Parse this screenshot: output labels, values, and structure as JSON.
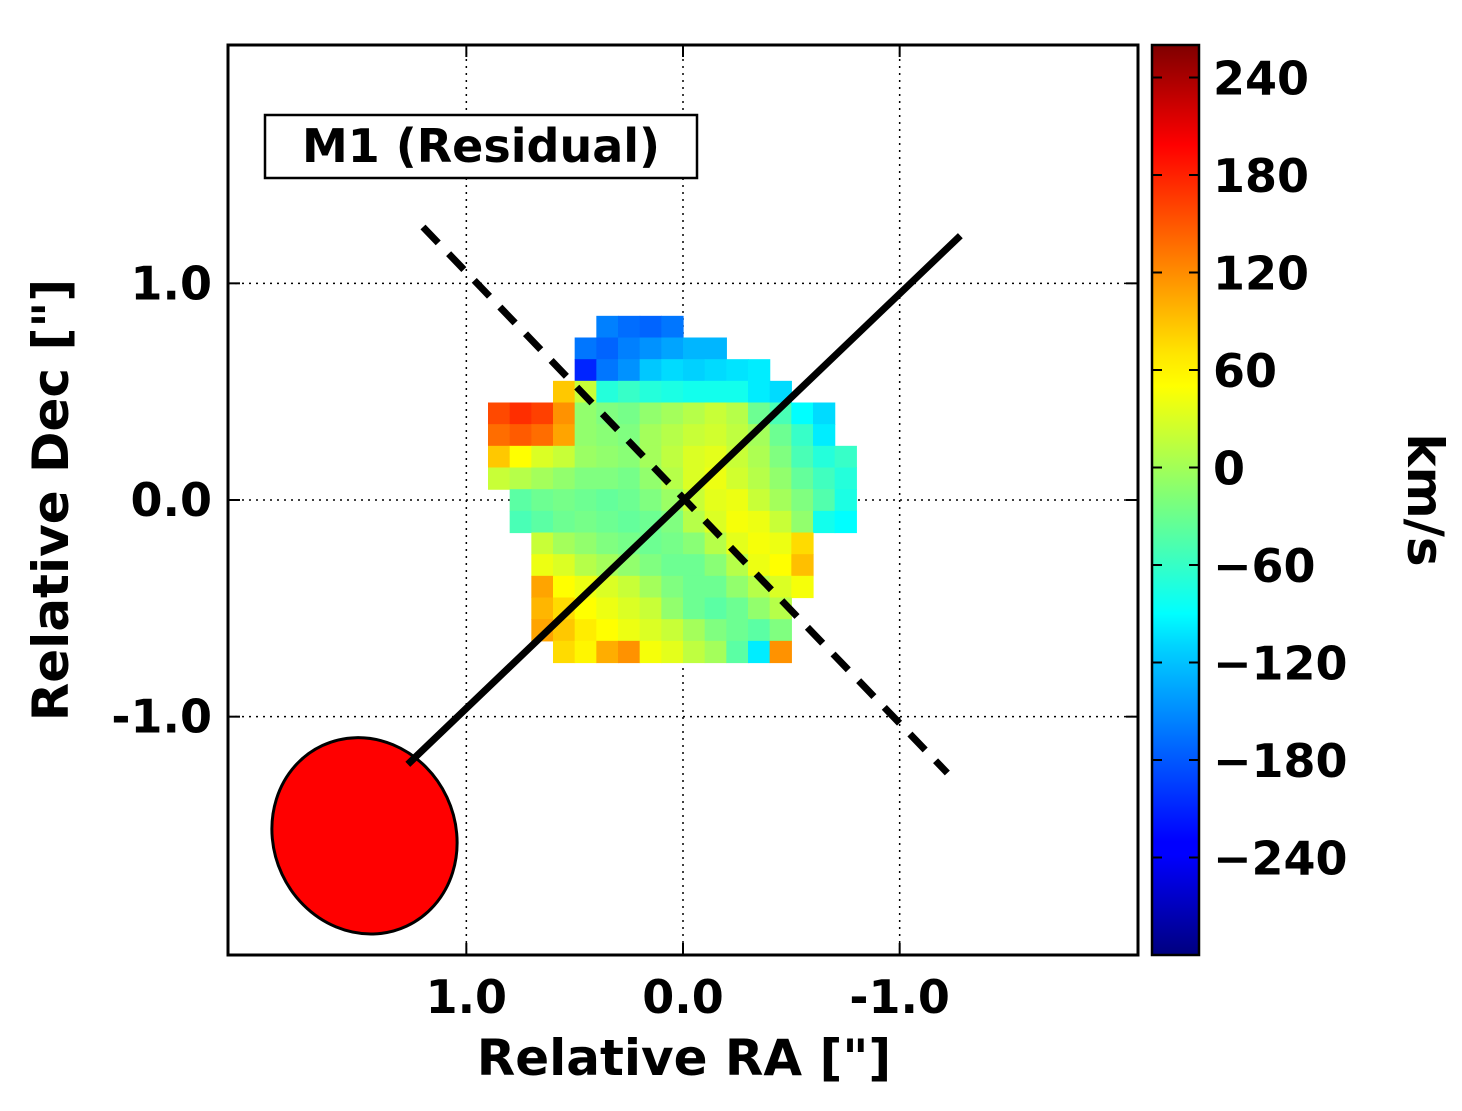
{
  "chart_data": {
    "type": "heatmap",
    "label_box": "M1 (Residual)",
    "xlabel": "Relative RA [\"]",
    "ylabel": "Relative Dec [\"]",
    "xlim": [
      2.1,
      -2.1
    ],
    "ylim": [
      -2.1,
      2.1
    ],
    "x_ticks": [
      {
        "value": 1.0,
        "label": "1.0"
      },
      {
        "value": 0.0,
        "label": "0.0"
      },
      {
        "value": -1.0,
        "label": "-1.0"
      }
    ],
    "y_ticks": [
      {
        "value": 1.0,
        "label": "1.0"
      },
      {
        "value": 0.0,
        "label": "0.0"
      },
      {
        "value": -1.0,
        "label": "-1.0"
      }
    ],
    "grid": true,
    "grid_style": "dotted",
    "pixel_size": 0.1,
    "cells": [
      [
        0.35,
        0.8,
        -160
      ],
      [
        0.25,
        0.8,
        -170
      ],
      [
        0.15,
        0.8,
        -175
      ],
      [
        0.05,
        0.8,
        -165
      ],
      [
        0.45,
        0.7,
        -165
      ],
      [
        0.35,
        0.7,
        -175
      ],
      [
        0.25,
        0.7,
        -160
      ],
      [
        0.15,
        0.7,
        -150
      ],
      [
        0.05,
        0.7,
        -140
      ],
      [
        -0.05,
        0.7,
        -130
      ],
      [
        -0.15,
        0.7,
        -130
      ],
      [
        0.45,
        0.6,
        -210
      ],
      [
        0.35,
        0.6,
        -165
      ],
      [
        0.25,
        0.6,
        -150
      ],
      [
        0.15,
        0.6,
        -120
      ],
      [
        0.05,
        0.6,
        -110
      ],
      [
        -0.05,
        0.6,
        -115
      ],
      [
        -0.15,
        0.6,
        -110
      ],
      [
        -0.25,
        0.6,
        -105
      ],
      [
        -0.35,
        0.6,
        -100
      ],
      [
        0.55,
        0.5,
        80
      ],
      [
        0.45,
        0.5,
        20
      ],
      [
        0.35,
        0.5,
        -70
      ],
      [
        0.25,
        0.5,
        -60
      ],
      [
        0.15,
        0.5,
        -70
      ],
      [
        0.05,
        0.5,
        -75
      ],
      [
        -0.05,
        0.5,
        -80
      ],
      [
        -0.15,
        0.5,
        -80
      ],
      [
        -0.25,
        0.5,
        -80
      ],
      [
        -0.35,
        0.5,
        -100
      ],
      [
        -0.45,
        0.5,
        -110
      ],
      [
        0.85,
        0.4,
        150
      ],
      [
        0.75,
        0.4,
        165
      ],
      [
        0.65,
        0.4,
        155
      ],
      [
        0.55,
        0.4,
        110
      ],
      [
        0.45,
        0.4,
        -10
      ],
      [
        0.35,
        0.4,
        -20
      ],
      [
        0.25,
        0.4,
        -25
      ],
      [
        0.15,
        0.4,
        -10
      ],
      [
        0.05,
        0.4,
        0
      ],
      [
        -0.05,
        0.4,
        10
      ],
      [
        -0.15,
        0.4,
        20
      ],
      [
        -0.25,
        0.4,
        10
      ],
      [
        -0.35,
        0.4,
        -30
      ],
      [
        -0.45,
        0.4,
        -50
      ],
      [
        -0.55,
        0.4,
        -90
      ],
      [
        -0.65,
        0.4,
        -110
      ],
      [
        0.85,
        0.3,
        130
      ],
      [
        0.75,
        0.3,
        140
      ],
      [
        0.65,
        0.3,
        130
      ],
      [
        0.55,
        0.3,
        100
      ],
      [
        0.45,
        0.3,
        -10
      ],
      [
        0.35,
        0.3,
        -15
      ],
      [
        0.25,
        0.3,
        -20
      ],
      [
        0.15,
        0.3,
        0
      ],
      [
        0.05,
        0.3,
        10
      ],
      [
        -0.05,
        0.3,
        20
      ],
      [
        -0.15,
        0.3,
        25
      ],
      [
        -0.25,
        0.3,
        15
      ],
      [
        -0.35,
        0.3,
        0
      ],
      [
        -0.45,
        0.3,
        -30
      ],
      [
        -0.55,
        0.3,
        -60
      ],
      [
        -0.65,
        0.3,
        -100
      ],
      [
        0.85,
        0.2,
        80
      ],
      [
        0.75,
        0.2,
        50
      ],
      [
        0.65,
        0.2,
        30
      ],
      [
        0.55,
        0.2,
        20
      ],
      [
        0.45,
        0.2,
        -5
      ],
      [
        0.35,
        0.2,
        -10
      ],
      [
        0.25,
        0.2,
        -15
      ],
      [
        0.15,
        0.2,
        0
      ],
      [
        0.05,
        0.2,
        15
      ],
      [
        -0.05,
        0.2,
        30
      ],
      [
        -0.15,
        0.2,
        35
      ],
      [
        -0.25,
        0.2,
        20
      ],
      [
        -0.35,
        0.2,
        5
      ],
      [
        -0.45,
        0.2,
        -20
      ],
      [
        -0.55,
        0.2,
        -50
      ],
      [
        -0.65,
        0.2,
        -70
      ],
      [
        -0.75,
        0.2,
        -60
      ],
      [
        0.85,
        0.1,
        20
      ],
      [
        0.75,
        0.1,
        10
      ],
      [
        0.65,
        0.1,
        0
      ],
      [
        0.55,
        0.1,
        -10
      ],
      [
        0.45,
        0.1,
        -20
      ],
      [
        0.35,
        0.1,
        -20
      ],
      [
        0.25,
        0.1,
        -25
      ],
      [
        0.15,
        0.1,
        -10
      ],
      [
        0.05,
        0.1,
        10
      ],
      [
        -0.05,
        0.1,
        30
      ],
      [
        -0.15,
        0.1,
        40
      ],
      [
        -0.25,
        0.1,
        25
      ],
      [
        -0.35,
        0.1,
        10
      ],
      [
        -0.45,
        0.1,
        -10
      ],
      [
        -0.55,
        0.1,
        -35
      ],
      [
        -0.65,
        0.1,
        -55
      ],
      [
        -0.75,
        0.1,
        -70
      ],
      [
        0.75,
        0.0,
        -40
      ],
      [
        0.65,
        0.0,
        -30
      ],
      [
        0.55,
        0.0,
        -25
      ],
      [
        0.45,
        0.0,
        -30
      ],
      [
        0.35,
        0.0,
        -35
      ],
      [
        0.25,
        0.0,
        -30
      ],
      [
        0.15,
        0.0,
        -20
      ],
      [
        0.05,
        0.0,
        -5
      ],
      [
        -0.05,
        0.0,
        20
      ],
      [
        -0.15,
        0.0,
        35
      ],
      [
        -0.25,
        0.0,
        40
      ],
      [
        -0.35,
        0.0,
        20
      ],
      [
        -0.45,
        0.0,
        0
      ],
      [
        -0.55,
        0.0,
        -20
      ],
      [
        -0.65,
        0.0,
        -45
      ],
      [
        -0.75,
        0.0,
        -75
      ],
      [
        0.75,
        -0.1,
        -50
      ],
      [
        0.65,
        -0.1,
        -40
      ],
      [
        0.55,
        -0.1,
        -30
      ],
      [
        0.45,
        -0.1,
        -25
      ],
      [
        0.35,
        -0.1,
        -30
      ],
      [
        0.25,
        -0.1,
        -35
      ],
      [
        0.15,
        -0.1,
        -30
      ],
      [
        0.05,
        -0.1,
        -20
      ],
      [
        -0.05,
        -0.1,
        10
      ],
      [
        -0.15,
        -0.1,
        30
      ],
      [
        -0.25,
        -0.1,
        45
      ],
      [
        -0.35,
        -0.1,
        40
      ],
      [
        -0.45,
        -0.1,
        20
      ],
      [
        -0.55,
        -0.1,
        -10
      ],
      [
        -0.65,
        -0.1,
        -80
      ],
      [
        -0.75,
        -0.1,
        -90
      ],
      [
        0.65,
        -0.2,
        20
      ],
      [
        0.55,
        -0.2,
        0
      ],
      [
        0.45,
        -0.2,
        -10
      ],
      [
        0.35,
        -0.2,
        -20
      ],
      [
        0.25,
        -0.2,
        -25
      ],
      [
        0.15,
        -0.2,
        -30
      ],
      [
        0.05,
        -0.2,
        -25
      ],
      [
        -0.05,
        -0.2,
        -15
      ],
      [
        -0.15,
        -0.2,
        10
      ],
      [
        -0.25,
        -0.2,
        35
      ],
      [
        -0.35,
        -0.2,
        45
      ],
      [
        -0.45,
        -0.2,
        40
      ],
      [
        -0.55,
        -0.2,
        70
      ],
      [
        0.65,
        -0.3,
        40
      ],
      [
        0.55,
        -0.3,
        30
      ],
      [
        0.45,
        -0.3,
        10
      ],
      [
        0.35,
        -0.3,
        0
      ],
      [
        0.25,
        -0.3,
        -10
      ],
      [
        0.15,
        -0.3,
        -20
      ],
      [
        0.05,
        -0.3,
        -30
      ],
      [
        -0.05,
        -0.3,
        -30
      ],
      [
        -0.15,
        -0.3,
        -15
      ],
      [
        -0.25,
        -0.3,
        10
      ],
      [
        -0.35,
        -0.3,
        40
      ],
      [
        -0.45,
        -0.3,
        50
      ],
      [
        -0.55,
        -0.3,
        85
      ],
      [
        0.65,
        -0.4,
        100
      ],
      [
        0.55,
        -0.4,
        50
      ],
      [
        0.45,
        -0.4,
        40
      ],
      [
        0.35,
        -0.4,
        30
      ],
      [
        0.25,
        -0.4,
        20
      ],
      [
        0.15,
        -0.4,
        0
      ],
      [
        0.05,
        -0.4,
        -20
      ],
      [
        -0.05,
        -0.4,
        -30
      ],
      [
        -0.15,
        -0.4,
        -30
      ],
      [
        -0.25,
        -0.4,
        -10
      ],
      [
        -0.35,
        -0.4,
        10
      ],
      [
        -0.45,
        -0.4,
        30
      ],
      [
        -0.55,
        -0.4,
        45
      ],
      [
        0.65,
        -0.5,
        90
      ],
      [
        0.55,
        -0.5,
        70
      ],
      [
        0.45,
        -0.5,
        50
      ],
      [
        0.35,
        -0.5,
        40
      ],
      [
        0.25,
        -0.5,
        30
      ],
      [
        0.15,
        -0.5,
        20
      ],
      [
        0.05,
        -0.5,
        -10
      ],
      [
        -0.05,
        -0.5,
        -30
      ],
      [
        -0.15,
        -0.5,
        -40
      ],
      [
        -0.25,
        -0.5,
        -30
      ],
      [
        -0.35,
        -0.5,
        -10
      ],
      [
        -0.45,
        -0.5,
        10
      ],
      [
        0.65,
        -0.6,
        100
      ],
      [
        0.55,
        -0.6,
        80
      ],
      [
        0.45,
        -0.6,
        60
      ],
      [
        0.35,
        -0.6,
        50
      ],
      [
        0.25,
        -0.6,
        40
      ],
      [
        0.15,
        -0.6,
        30
      ],
      [
        0.05,
        -0.6,
        20
      ],
      [
        -0.05,
        -0.6,
        0
      ],
      [
        -0.15,
        -0.6,
        -20
      ],
      [
        -0.25,
        -0.6,
        -30
      ],
      [
        -0.35,
        -0.6,
        -40
      ],
      [
        -0.45,
        -0.6,
        -20
      ],
      [
        0.55,
        -0.7,
        70
      ],
      [
        0.45,
        -0.7,
        55
      ],
      [
        0.35,
        -0.7,
        95
      ],
      [
        0.25,
        -0.7,
        110
      ],
      [
        0.15,
        -0.7,
        45
      ],
      [
        0.05,
        -0.7,
        35
      ],
      [
        -0.05,
        -0.7,
        15
      ],
      [
        -0.15,
        -0.7,
        0
      ],
      [
        -0.25,
        -0.7,
        -40
      ],
      [
        -0.35,
        -0.7,
        -100
      ],
      [
        -0.45,
        -0.7,
        110
      ]
    ],
    "lines": [
      {
        "name": "solid",
        "style": "solid",
        "points": [
          [
            1.27,
            -1.22
          ],
          [
            -1.28,
            1.22
          ]
        ]
      },
      {
        "name": "dashed",
        "style": "dashed",
        "points": [
          [
            1.2,
            1.26
          ],
          [
            -1.22,
            -1.26
          ]
        ]
      }
    ],
    "beam": {
      "x": 1.47,
      "y": -1.55,
      "rx": 0.42,
      "ry": 0.46,
      "angle_deg": -25,
      "color": "#ff0000"
    },
    "colorbar": {
      "colormap": "jet",
      "vmin": -300,
      "vmax": 260,
      "ticks": [
        240,
        180,
        120,
        60,
        0,
        -60,
        -120,
        -180,
        -240
      ],
      "tick_labels": [
        "240",
        "180",
        "120",
        "60",
        "0",
        "−60",
        "−120",
        "−180",
        "−240"
      ],
      "label": "km/s"
    }
  }
}
